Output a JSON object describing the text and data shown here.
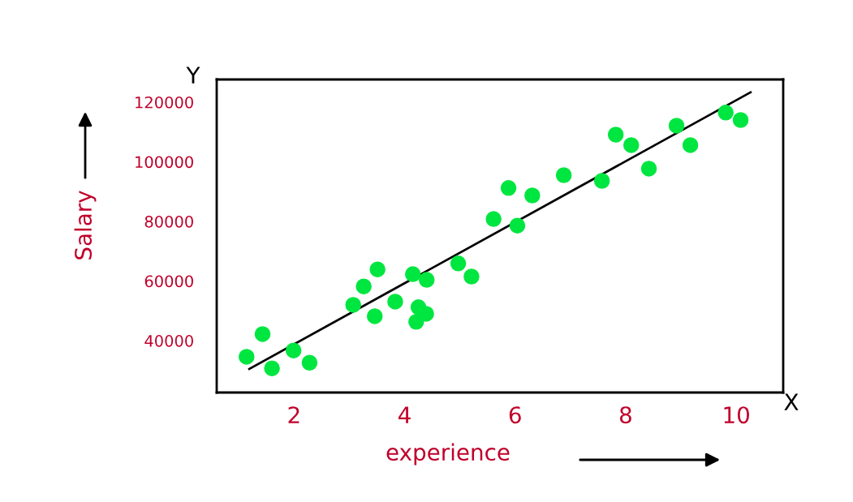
{
  "chart_data": {
    "type": "scatter",
    "xlabel": "experience",
    "ylabel": "Salary",
    "annotations": [
      "Y",
      "X"
    ],
    "xlim": [
      0.6,
      10.85
    ],
    "xticks": [
      2,
      4,
      6,
      8,
      10
    ],
    "ylim": [
      22600,
      127600
    ],
    "yticks": [
      40000,
      60000,
      80000,
      100000,
      120000
    ],
    "grid": false,
    "legend": false,
    "series": [
      {
        "color": "#00e640",
        "marker": "circle",
        "x": [
          1.14,
          1.43,
          1.6,
          1.99,
          2.28,
          3.07,
          3.26,
          3.51,
          3.46,
          3.83,
          4.15,
          4.21,
          4.25,
          4.4,
          4.39,
          4.97,
          5.21,
          5.61,
          5.88,
          6.04,
          6.31,
          6.88,
          7.57,
          7.82,
          8.1,
          8.42,
          8.92,
          9.17,
          9.81,
          10.08
        ],
        "values": [
          34600,
          42200,
          30700,
          36700,
          32600,
          52000,
          58200,
          63900,
          48200,
          53100,
          62300,
          46300,
          51200,
          60400,
          49000,
          65900,
          61500,
          80800,
          91200,
          78600,
          88700,
          95500,
          93600,
          109100,
          105600,
          97700,
          112100,
          105600,
          116500,
          114000
        ]
      },
      {
        "type": "line",
        "color": "#000000",
        "x": [
          1.19,
          10.26
        ],
        "values": [
          30500,
          123300
        ],
        "line_style": "solid",
        "marker": "none"
      }
    ]
  }
}
